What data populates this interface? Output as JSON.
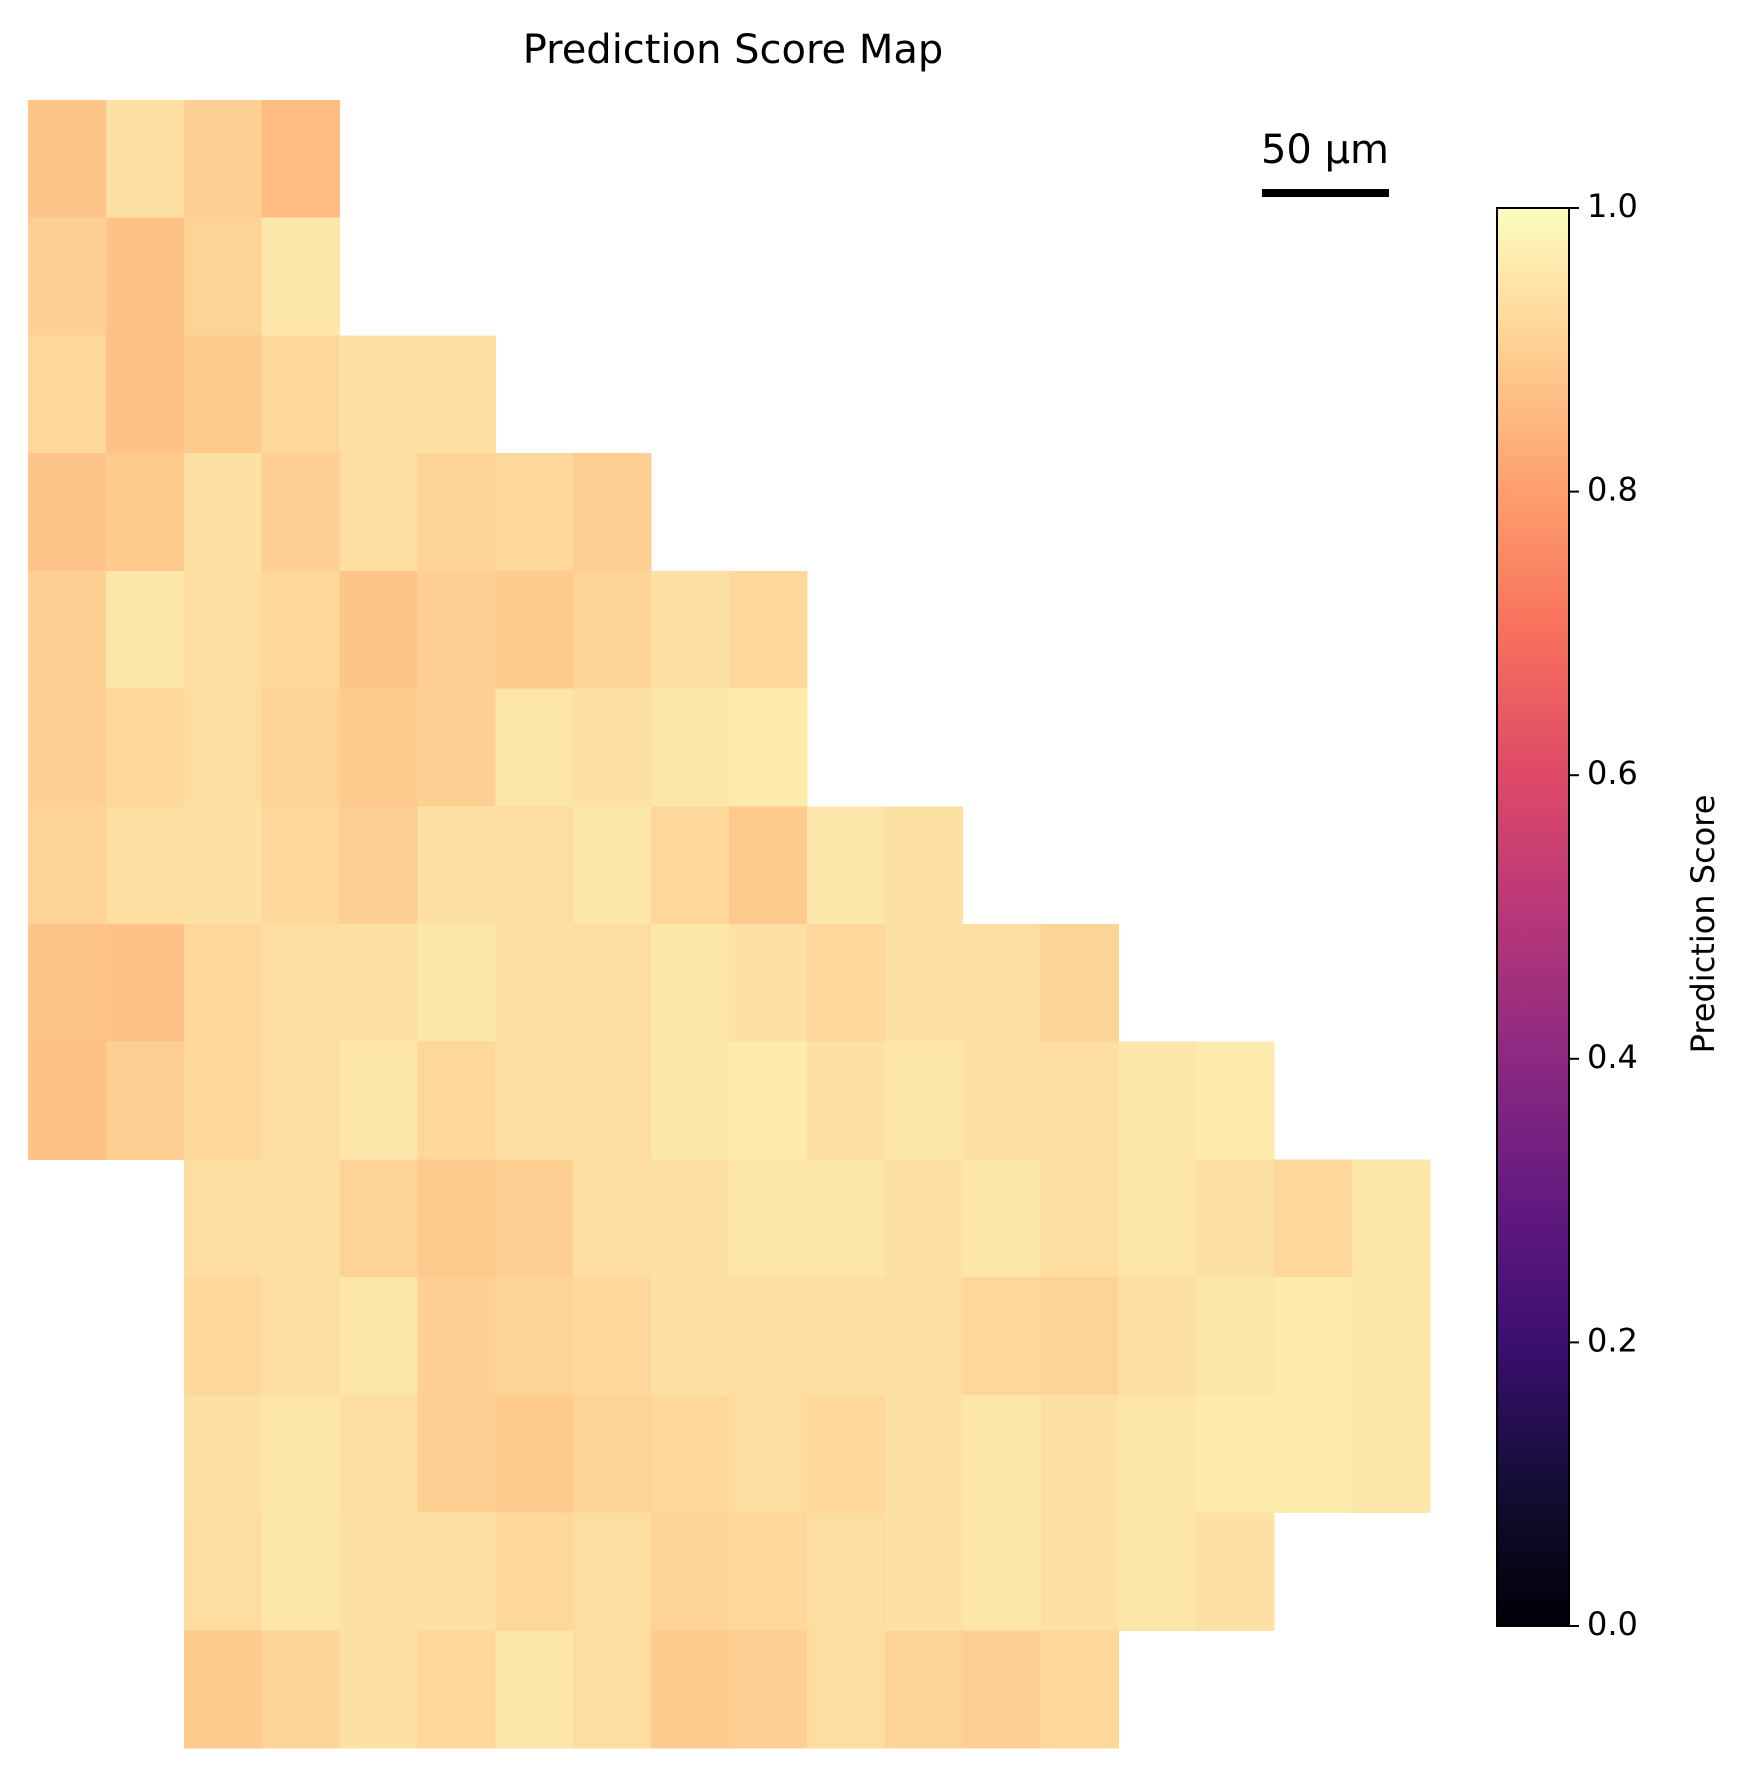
{
  "chart_data": {
    "type": "heatmap",
    "title": "Prediction Score Map",
    "colorbar_label": "Prediction Score",
    "scale_bar": {
      "label": "50 µm"
    },
    "clim": [
      0,
      1
    ],
    "cticks": [
      {
        "value": 0,
        "label": "0.0"
      },
      {
        "value": 0.2,
        "label": "0.2"
      },
      {
        "value": 0.4,
        "label": "0.4"
      },
      {
        "value": 0.6,
        "label": "0.6"
      },
      {
        "value": 0.8,
        "label": "0.8"
      },
      {
        "value": 1,
        "label": "1.0"
      }
    ],
    "colormap": [
      "#000004",
      "#140e36",
      "#3b0f70",
      "#641a80",
      "#8c2981",
      "#b73779",
      "#de4968",
      "#f7705c",
      "#fe9f6d",
      "#fecf92",
      "#fcfdbf"
    ],
    "values": [
      [
        0.88,
        0.94,
        0.9,
        0.86,
        null,
        null,
        null,
        null,
        null,
        null,
        null,
        null,
        null,
        null,
        null,
        null,
        null,
        null
      ],
      [
        0.9,
        0.87,
        0.91,
        0.95,
        null,
        null,
        null,
        null,
        null,
        null,
        null,
        null,
        null,
        null,
        null,
        null,
        null,
        null
      ],
      [
        0.92,
        0.87,
        0.89,
        0.92,
        0.94,
        0.94,
        null,
        null,
        null,
        null,
        null,
        null,
        null,
        null,
        null,
        null,
        null,
        null
      ],
      [
        0.88,
        0.89,
        0.94,
        0.9,
        0.93,
        0.91,
        0.92,
        0.9,
        null,
        null,
        null,
        null,
        null,
        null,
        null,
        null,
        null,
        null
      ],
      [
        0.9,
        0.95,
        0.93,
        0.92,
        0.88,
        0.9,
        0.89,
        0.91,
        0.94,
        0.92,
        null,
        null,
        null,
        null,
        null,
        null,
        null,
        null
      ],
      [
        0.9,
        0.92,
        0.93,
        0.91,
        0.89,
        0.9,
        0.95,
        0.94,
        0.95,
        0.96,
        null,
        null,
        null,
        null,
        null,
        null,
        null,
        null
      ],
      [
        0.91,
        0.93,
        0.94,
        0.92,
        0.9,
        0.94,
        0.93,
        0.95,
        0.92,
        0.89,
        0.95,
        0.94,
        null,
        null,
        null,
        null,
        null,
        null
      ],
      [
        0.88,
        0.87,
        0.92,
        0.93,
        0.94,
        0.95,
        0.94,
        0.93,
        0.95,
        0.94,
        0.92,
        0.94,
        0.93,
        0.91,
        null,
        null,
        null,
        null
      ],
      [
        0.87,
        0.9,
        0.92,
        0.93,
        0.95,
        0.92,
        0.94,
        0.93,
        0.95,
        0.96,
        0.94,
        0.95,
        0.94,
        0.93,
        0.95,
        0.96,
        null,
        null
      ],
      [
        null,
        null,
        0.93,
        0.94,
        0.91,
        0.89,
        0.9,
        0.93,
        0.94,
        0.95,
        0.95,
        0.94,
        0.95,
        0.93,
        0.95,
        0.94,
        0.92,
        0.95
      ],
      [
        null,
        null,
        0.92,
        0.93,
        0.95,
        0.9,
        0.91,
        0.92,
        0.94,
        0.93,
        0.94,
        0.93,
        0.92,
        0.91,
        0.94,
        0.95,
        0.96,
        0.95
      ],
      [
        null,
        null,
        0.94,
        0.95,
        0.93,
        0.9,
        0.89,
        0.91,
        0.92,
        0.93,
        0.92,
        0.94,
        0.95,
        0.94,
        0.95,
        0.96,
        0.96,
        0.95
      ],
      [
        null,
        null,
        0.93,
        0.95,
        0.94,
        0.94,
        0.92,
        0.93,
        0.91,
        0.92,
        0.93,
        0.94,
        0.95,
        0.94,
        0.95,
        0.94,
        null,
        null
      ],
      [
        null,
        null,
        0.89,
        0.91,
        0.94,
        0.92,
        0.95,
        0.93,
        0.89,
        0.9,
        0.93,
        0.91,
        0.9,
        0.92,
        null,
        null,
        null,
        null
      ]
    ]
  }
}
